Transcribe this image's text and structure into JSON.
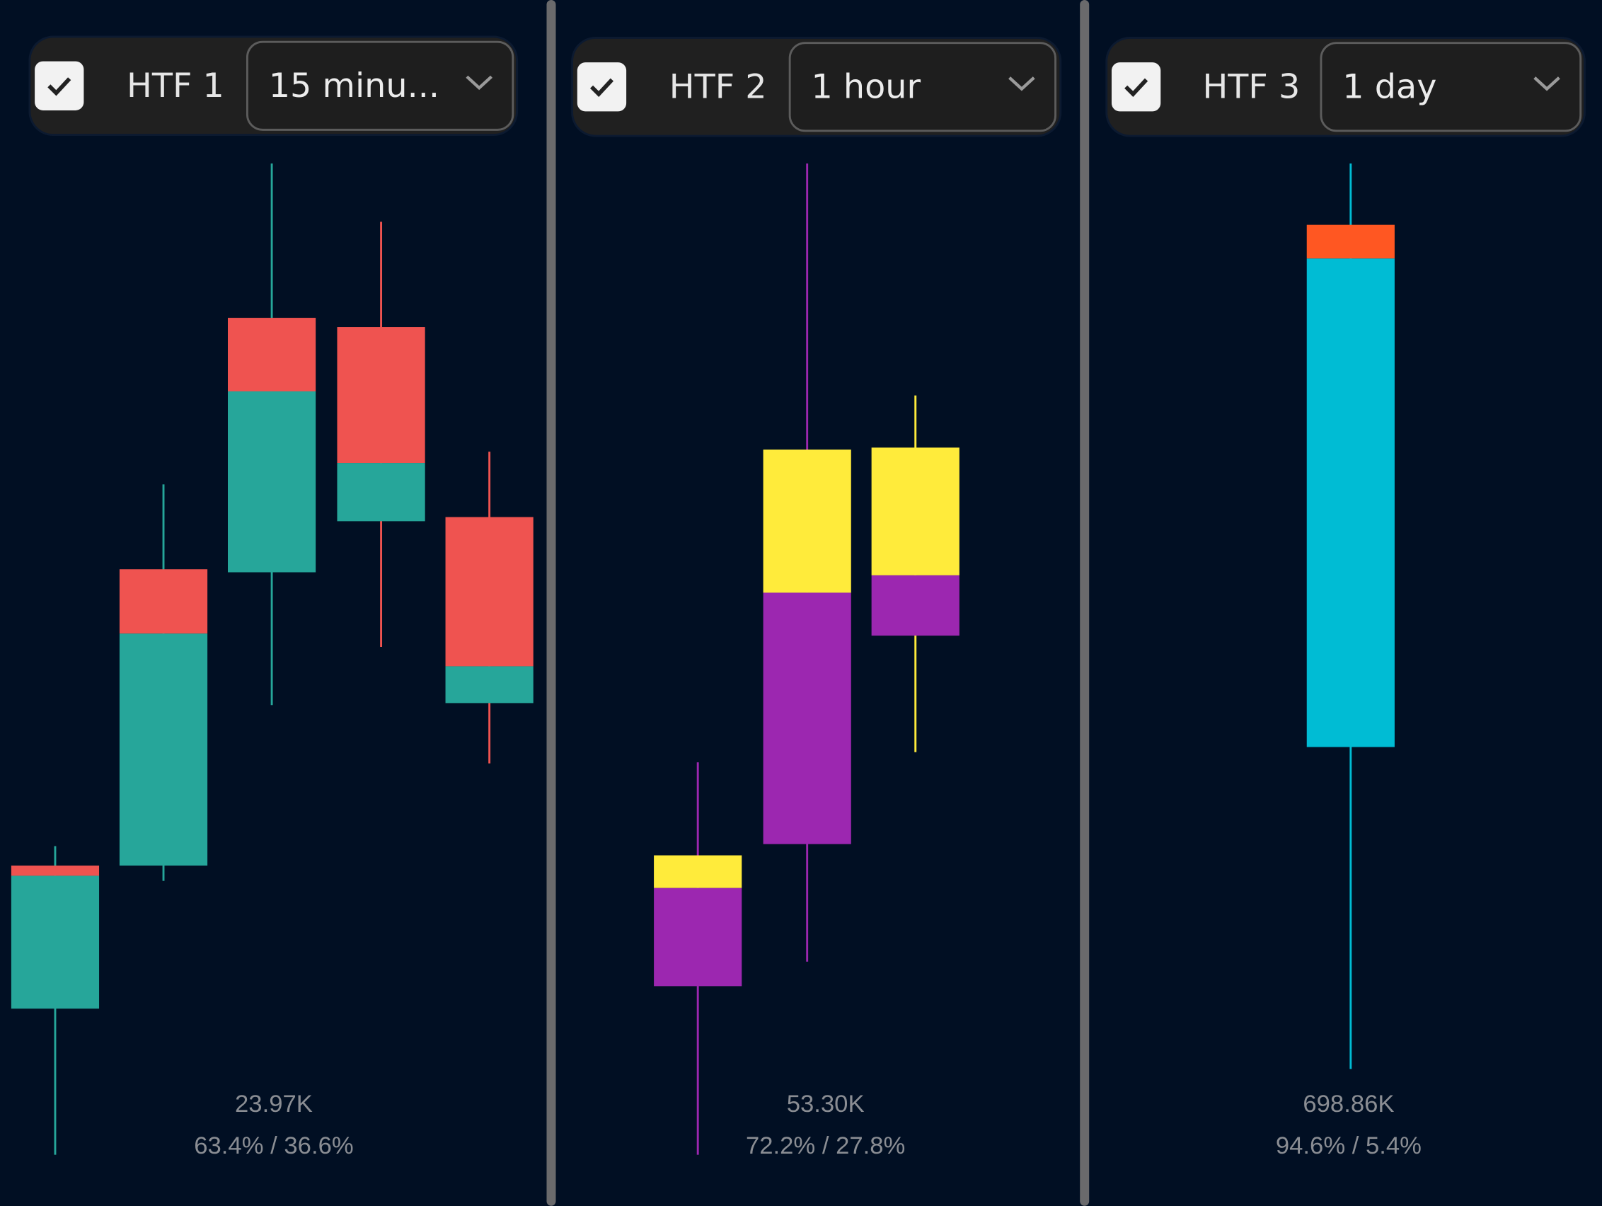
{
  "panels": [
    {
      "checked": true,
      "label": "HTF 1",
      "timeframe": "15 minu...",
      "volume": "23.97K",
      "split_text": "63.4% / 36.6%",
      "colors": {
        "up": "#26a69a",
        "down": "#ef5350",
        "upper": "#ef5350",
        "lower": "#26a69a"
      },
      "candles": [
        {
          "high": 35.2,
          "low": 5.0,
          "body_top": 33.3,
          "body_bottom": 19.3,
          "split": 32.3,
          "direction": "up"
        },
        {
          "high": 70.6,
          "low": 31.8,
          "body_top": 62.3,
          "body_bottom": 33.3,
          "split": 56.0,
          "direction": "up"
        },
        {
          "high": 102.0,
          "low": 49.0,
          "body_top": 86.9,
          "body_bottom": 62.0,
          "split": 79.7,
          "direction": "up"
        },
        {
          "high": 96.3,
          "low": 54.7,
          "body_top": 86.0,
          "body_bottom": 67.0,
          "split": 72.7,
          "direction": "down"
        },
        {
          "high": 73.8,
          "low": 43.3,
          "body_top": 67.4,
          "body_bottom": 49.2,
          "split": 52.8,
          "direction": "down"
        }
      ]
    },
    {
      "checked": true,
      "label": "HTF 2",
      "timeframe": "1 hour",
      "volume": "53.30K",
      "split_text": "72.2% / 27.8%",
      "colors": {
        "up": "#9c27b0",
        "down": "#ffeb3b",
        "upper": "#ffeb3b",
        "lower": "#9c27b0"
      },
      "candles": [
        {
          "high": 43.4,
          "low": 5.0,
          "body_top": 34.3,
          "body_bottom": 21.5,
          "split": 31.1,
          "direction": "up"
        },
        {
          "high": 102.0,
          "low": 23.9,
          "body_top": 74.0,
          "body_bottom": 35.4,
          "split": 60.0,
          "direction": "up"
        },
        {
          "high": 79.3,
          "low": 44.4,
          "body_top": 74.2,
          "body_bottom": 55.8,
          "split": 61.7,
          "direction": "down"
        }
      ]
    },
    {
      "checked": true,
      "label": "HTF 3",
      "timeframe": "1 day",
      "volume": "698.86K",
      "split_text": "94.6% / 5.4%",
      "colors": {
        "up": "#00bcd4",
        "down": "#ff5722",
        "upper": "#ff5722",
        "lower": "#00bcd4"
      },
      "candles": [
        {
          "high": 102.0,
          "low": 13.4,
          "body_top": 96.0,
          "body_bottom": 44.9,
          "split": 92.7,
          "direction": "up"
        }
      ]
    }
  ],
  "background": "#010f23"
}
